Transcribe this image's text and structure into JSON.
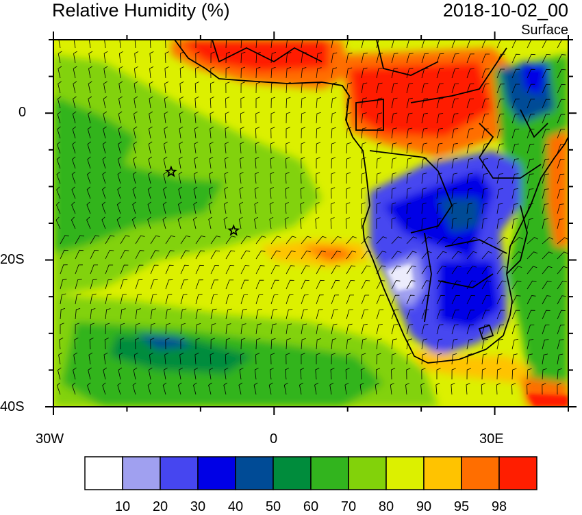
{
  "header": {
    "title": "Relative Humidity (%)",
    "datetime": "2018-10-02_00",
    "level": "Surface"
  },
  "axes": {
    "y_ticks": [
      {
        "value": 0,
        "label": "0"
      },
      {
        "value": -20,
        "label": "20S"
      },
      {
        "value": -40,
        "label": "40S"
      }
    ],
    "x_ticks": [
      {
        "value": -30,
        "label": "30W"
      },
      {
        "value": 0,
        "label": "0"
      },
      {
        "value": 30,
        "label": "30E"
      }
    ],
    "lon_range": [
      -30,
      40
    ],
    "lat_range": [
      -40,
      10
    ]
  },
  "colorbar": {
    "colors": [
      "#ffffff",
      "#a0a0f0",
      "#4646f0",
      "#0000e6",
      "#004b96",
      "#008c3c",
      "#32b41e",
      "#82d20a",
      "#dcf000",
      "#ffc300",
      "#ff6e00",
      "#ff1e00"
    ],
    "labels": [
      "10",
      "20",
      "30",
      "40",
      "50",
      "60",
      "70",
      "80",
      "90",
      "95",
      "98"
    ]
  },
  "markers": [
    {
      "name": "star",
      "lon": -14,
      "lat": -8
    },
    {
      "name": "star",
      "lon": -5.5,
      "lat": -16
    }
  ]
}
